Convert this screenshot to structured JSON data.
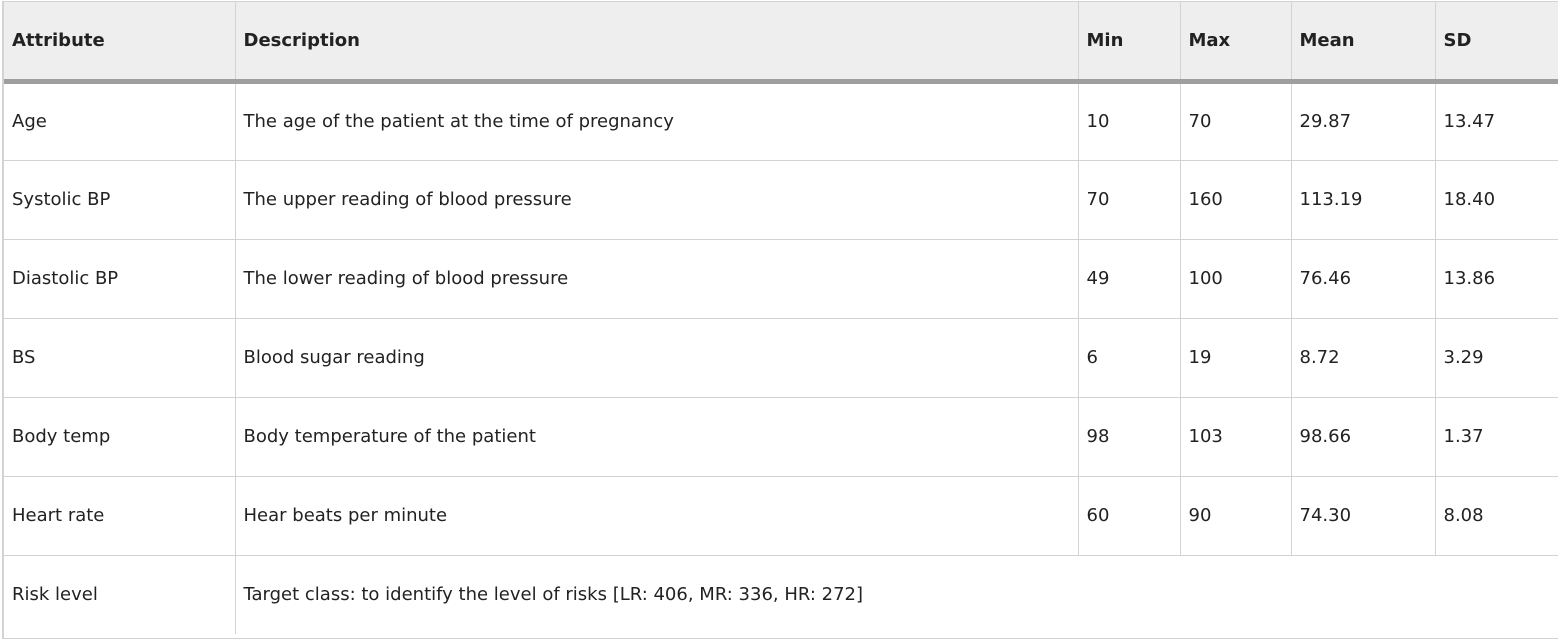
{
  "table": {
    "headers": [
      "Attribute",
      "Description",
      "Min",
      "Max",
      "Mean",
      "SD"
    ],
    "rows": [
      [
        "Age",
        "The age of the patient at the time of pregnancy",
        "10",
        "70",
        "29.87",
        "13.47"
      ],
      [
        "Systolic BP",
        "The upper reading of blood pressure",
        "70",
        "160",
        "113.19",
        "18.40"
      ],
      [
        "Diastolic BP",
        "The lower reading of blood pressure",
        "49",
        "100",
        "76.46",
        "13.86"
      ],
      [
        "BS",
        "Blood sugar reading",
        "6",
        "19",
        "8.72",
        "3.29"
      ],
      [
        "Body temp",
        "Body temperature of the patient",
        "98",
        "103",
        "98.66",
        "1.37"
      ],
      [
        "Heart rate",
        "Hear beats per minute",
        "60",
        "90",
        "74.30",
        "8.08"
      ]
    ],
    "final_row": {
      "attribute": "Risk level",
      "description": "Target class: to identify the level of risks [LR: 406, MR: 336, HR: 272]"
    }
  }
}
